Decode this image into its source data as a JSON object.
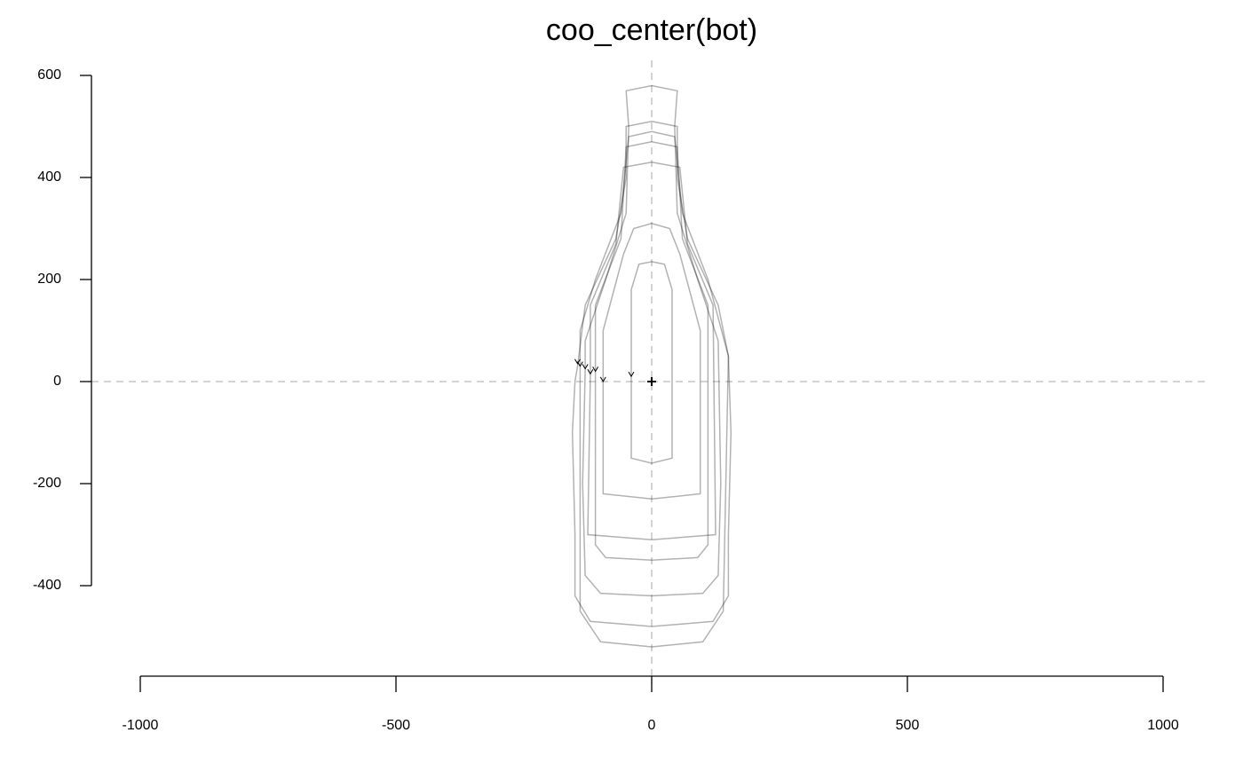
{
  "chart_data": {
    "type": "outline",
    "title": "coo_center(bot)",
    "xlim": [
      -1000,
      1000
    ],
    "xticks": [
      -1000,
      -500,
      0,
      500,
      1000
    ],
    "ylim": [
      -400,
      600
    ],
    "yticks": [
      -400,
      -200,
      0,
      200,
      400,
      600
    ],
    "hline": 0,
    "vline": 0,
    "center": {
      "x": 0,
      "y": 0
    },
    "color": "#000000",
    "outlines": [
      {
        "x": [
          -145,
          -150,
          -155,
          -150,
          -150,
          -120,
          0,
          120,
          150,
          150,
          155,
          150,
          130,
          70,
          50,
          50,
          0,
          -50,
          -50,
          -70,
          -130
        ],
        "y": [
          30,
          0,
          -100,
          -300,
          -420,
          -470,
          -480,
          -470,
          -420,
          -300,
          -100,
          50,
          150,
          280,
          400,
          500,
          510,
          500,
          400,
          280,
          150
        ]
      },
      {
        "x": [
          -130,
          -135,
          -130,
          -100,
          0,
          100,
          130,
          135,
          130,
          90,
          50,
          45,
          50,
          0,
          -50,
          -45,
          -50,
          -90,
          -130
        ],
        "y": [
          20,
          -200,
          -380,
          -415,
          -420,
          -415,
          -380,
          -200,
          80,
          200,
          330,
          500,
          570,
          580,
          570,
          500,
          330,
          200,
          80
        ]
      },
      {
        "x": [
          -40,
          -40,
          0,
          40,
          40,
          25,
          0,
          -25,
          -40
        ],
        "y": [
          5,
          -150,
          -160,
          -150,
          180,
          230,
          235,
          230,
          180
        ]
      },
      {
        "x": [
          -95,
          -95,
          0,
          95,
          95,
          55,
          35,
          0,
          -35,
          -55,
          -95
        ],
        "y": [
          -5,
          -220,
          -230,
          -220,
          100,
          250,
          300,
          310,
          300,
          250,
          100
        ]
      },
      {
        "x": [
          -110,
          -110,
          -90,
          0,
          90,
          110,
          110,
          60,
          50,
          0,
          -50,
          -60,
          -110
        ],
        "y": [
          15,
          -320,
          -345,
          -350,
          -345,
          -320,
          150,
          280,
          460,
          470,
          460,
          280,
          150
        ]
      },
      {
        "x": [
          -140,
          -140,
          -100,
          0,
          100,
          140,
          150,
          110,
          60,
          45,
          0,
          -45,
          -60,
          -110,
          -140
        ],
        "y": [
          25,
          -450,
          -510,
          -520,
          -510,
          -450,
          50,
          200,
          330,
          480,
          490,
          480,
          330,
          200,
          100
        ]
      },
      {
        "x": [
          -120,
          -125,
          0,
          125,
          120,
          70,
          55,
          0,
          -55,
          -70,
          -120
        ],
        "y": [
          10,
          -300,
          -310,
          -300,
          150,
          270,
          420,
          430,
          420,
          270,
          150
        ]
      }
    ]
  }
}
